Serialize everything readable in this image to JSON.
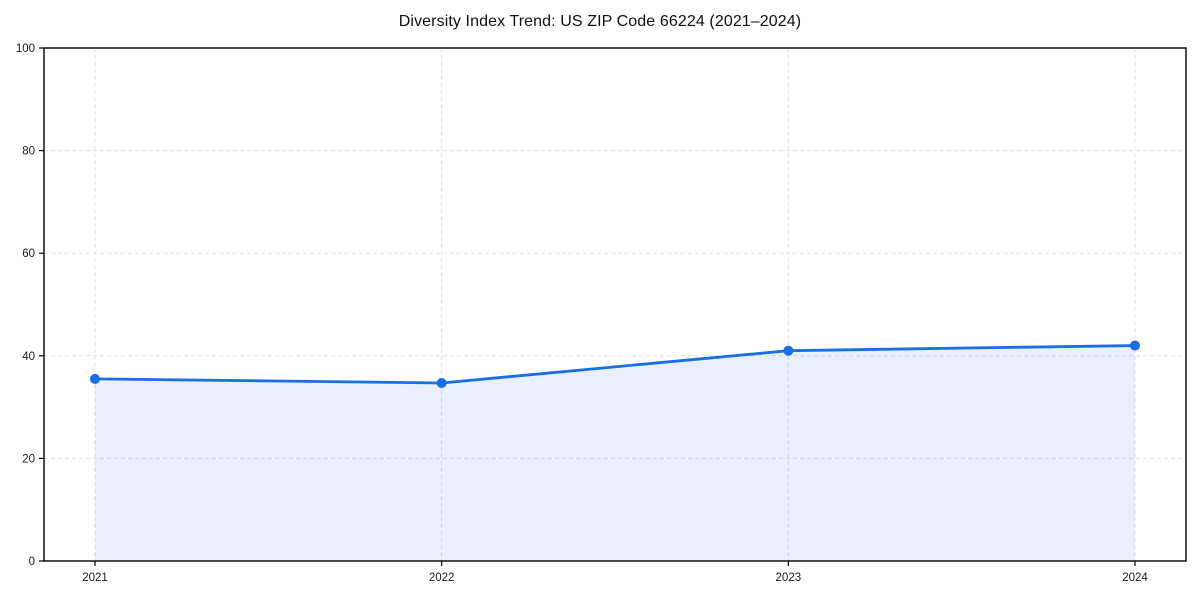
{
  "chart_data": {
    "type": "line",
    "title": "Diversity Index Trend: US ZIP Code 66224 (2021–2024)",
    "categories": [
      "2021",
      "2022",
      "2023",
      "2024"
    ],
    "series": [
      {
        "name": "Diversity Index",
        "values": [
          35.5,
          34.7,
          41.0,
          42.0
        ]
      }
    ],
    "xlabel": "",
    "ylabel": "",
    "ylim": [
      0,
      100
    ],
    "y_ticks": [
      0,
      20,
      40,
      60,
      80,
      100
    ],
    "grid": {
      "enabled": true,
      "style": "dashed",
      "axes": "both",
      "color": "#e0e0e0"
    },
    "legend_position": "none",
    "area_fill": true,
    "marker": "circle",
    "colors": {
      "line": "#1a6ee8",
      "fill": "rgba(26,110,232,0.10)",
      "spine": "#000000",
      "tick_label": "#1a1a1a",
      "background": "#ffffff"
    }
  }
}
